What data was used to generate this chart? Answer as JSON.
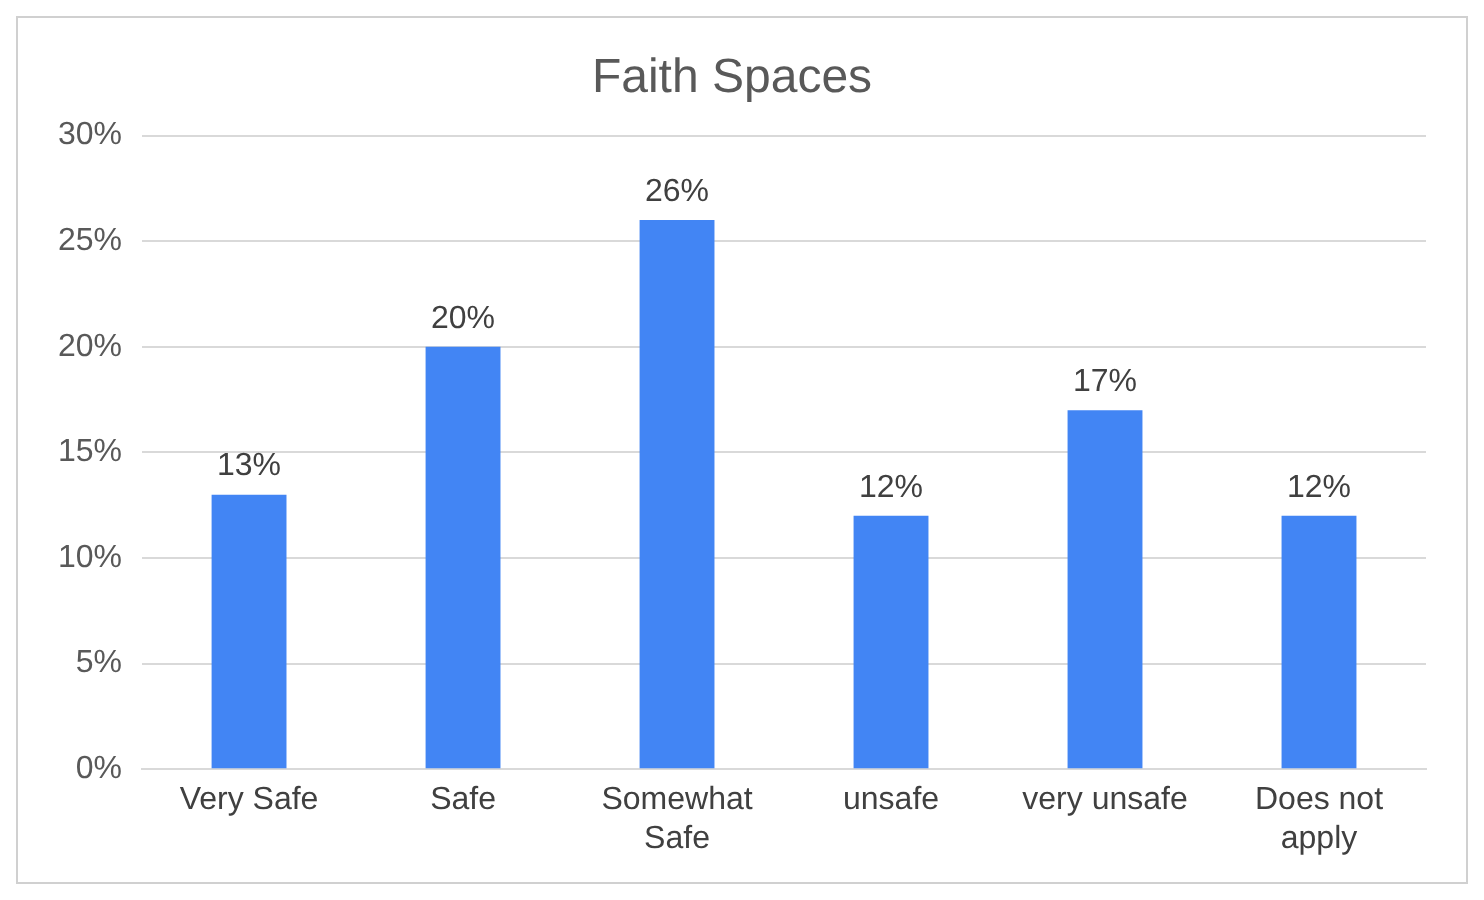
{
  "chart_data": {
    "type": "bar",
    "title": "Faith Spaces",
    "categories": [
      "Very Safe",
      "Safe",
      "Somewhat Safe",
      "unsafe",
      "very unsafe",
      "Does not apply"
    ],
    "values": [
      13,
      20,
      26,
      12,
      17,
      12
    ],
    "value_labels": [
      "13%",
      "20%",
      "26%",
      "12%",
      "17%",
      "12%"
    ],
    "color": "#4285f4",
    "ylim": [
      0,
      30
    ],
    "yticks": [
      {
        "value": 0,
        "label": "0%"
      },
      {
        "value": 5,
        "label": "5%"
      },
      {
        "value": 10,
        "label": "10%"
      },
      {
        "value": 15,
        "label": "15%"
      },
      {
        "value": 20,
        "label": "20%"
      },
      {
        "value": 25,
        "label": "25%"
      },
      {
        "value": 30,
        "label": "30%"
      }
    ],
    "grid": "y",
    "legend": false
  }
}
